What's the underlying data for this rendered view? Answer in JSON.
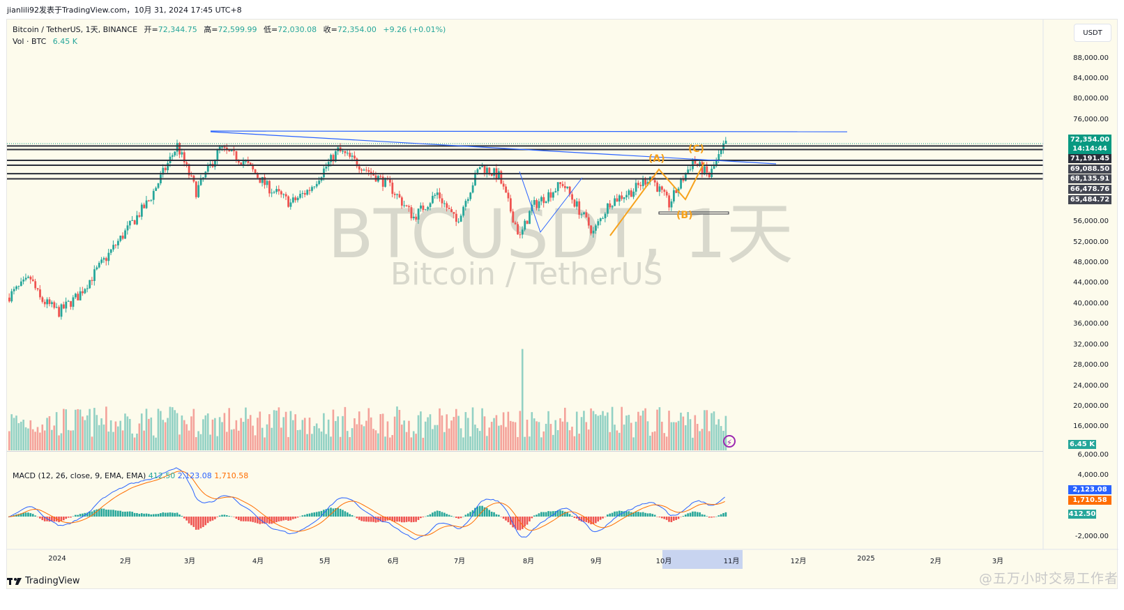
{
  "publisher": "jianlili92发表于TradingView.com，10月 31, 2024 17:45 UTC+8",
  "legend": {
    "symbol": "Bitcoin / TetherUS, 1天, BINANCE",
    "open_label": "开=",
    "open": "72,344.75",
    "high_label": "高=",
    "high": "72,599.99",
    "low_label": "低=",
    "low": "72,030.08",
    "close_label": "收=",
    "close": "72,354.00",
    "change": "+9.26 (+0.01%)",
    "vol_label": "Vol · BTC",
    "vol": "6.45 K"
  },
  "currency_button": "USDT",
  "watermark": {
    "symbol": "BTCUSDT, 1天",
    "name": "Bitcoin / TetherUS"
  },
  "price_axis": [
    "88,000.00",
    "84,000.00",
    "80,000.00",
    "76,000.00",
    "56,000.00",
    "52,000.00",
    "48,000.00",
    "44,000.00",
    "40,000.00",
    "36,000.00",
    "32,000.00",
    "28,000.00",
    "24,000.00",
    "20,000.00",
    "16,000.00"
  ],
  "price_tags": {
    "last": "72,354.00",
    "countdown": "14:14:44",
    "levels": [
      "71,191.45",
      "69,088.50",
      "68,135.91",
      "66,478.76",
      "65,484.72"
    ],
    "volume": "6.45 K"
  },
  "macd": {
    "label": "MACD (12, 26, close, 9, EMA, EMA)",
    "hist": "412.50",
    "macd": "2,123.08",
    "signal": "1,710.58",
    "axis": [
      "6,000.00",
      "4,000.00",
      "-2,000.00"
    ]
  },
  "time_axis": [
    "2024",
    "2月",
    "3月",
    "4月",
    "5月",
    "6月",
    "7月",
    "8月",
    "9月",
    "10月",
    "11月",
    "12月",
    "2025",
    "2月",
    "3月"
  ],
  "waves": {
    "a": "(A)",
    "b": "(B)",
    "c": "(C)"
  },
  "footer": {
    "brand": "TradingView",
    "watermark": "@五万小时交易工作者"
  },
  "colors": {
    "up": "#26a69a",
    "down": "#ef5350",
    "macd": "#2962ff",
    "signal": "#ff6d00",
    "bg": "#fdfbec"
  },
  "chart_data": {
    "type": "candlestick",
    "title": "Bitcoin / TetherUS, 1天, BINANCE",
    "xlabel": "",
    "ylabel": "USDT",
    "ylim": [
      38000,
      90000
    ],
    "x_ticks": [
      "2024",
      "2月",
      "3月",
      "4月",
      "5月",
      "6月",
      "7月",
      "8月",
      "9月",
      "10月",
      "11月",
      "12月",
      "2025",
      "2月",
      "3月"
    ],
    "monthly_approx": [
      {
        "month": "2024-01",
        "open": 42300,
        "high": 48900,
        "low": 38600,
        "close": 42600
      },
      {
        "month": "2024-02",
        "open": 42600,
        "high": 63900,
        "low": 41900,
        "close": 61200
      },
      {
        "month": "2024-03",
        "open": 61200,
        "high": 73800,
        "low": 59000,
        "close": 71300
      },
      {
        "month": "2024-04",
        "open": 71300,
        "high": 72800,
        "low": 59600,
        "close": 60700
      },
      {
        "month": "2024-05",
        "open": 60700,
        "high": 71900,
        "low": 56500,
        "close": 67500
      },
      {
        "month": "2024-06",
        "open": 67500,
        "high": 71900,
        "low": 58400,
        "close": 62700
      },
      {
        "month": "2024-07",
        "open": 62700,
        "high": 70000,
        "low": 53500,
        "close": 64600
      },
      {
        "month": "2024-08",
        "open": 64600,
        "high": 65600,
        "low": 49000,
        "close": 58900
      },
      {
        "month": "2024-09",
        "open": 58900,
        "high": 66500,
        "low": 52500,
        "close": 63300
      },
      {
        "month": "2024-10",
        "open": 63300,
        "high": 73600,
        "low": 58900,
        "close": 72354
      }
    ],
    "horizontal_levels": [
      72354.0,
      71191.45,
      69088.5,
      68135.91,
      66478.76,
      65484.72
    ],
    "volume_axis": [
      16000,
      20000,
      24000,
      28000,
      32000
    ],
    "last_volume": "6.45K",
    "macd": {
      "macd": 2123.08,
      "signal": 1710.58,
      "histogram": 412.5,
      "ylim": [
        -3000,
        6500
      ]
    }
  }
}
